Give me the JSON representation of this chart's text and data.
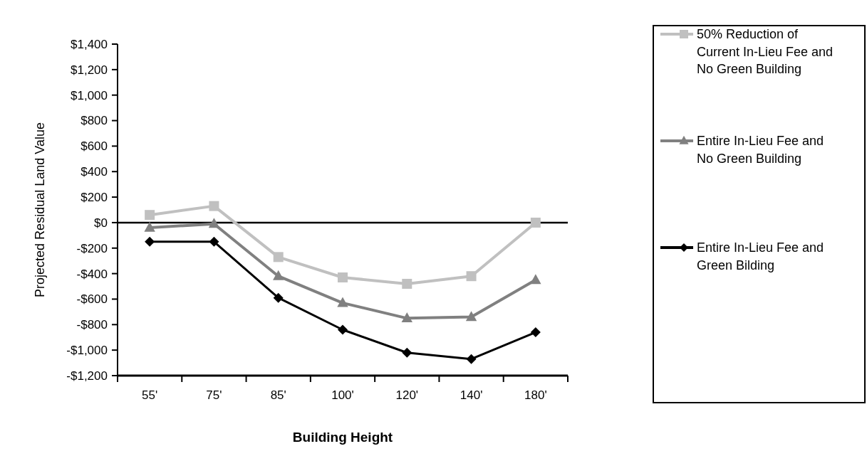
{
  "chart_data": {
    "type": "line",
    "xlabel": "Building Height",
    "ylabel": "Projected Residual Land Value",
    "categories": [
      "55'",
      "75'",
      "85'",
      "100'",
      "120'",
      "140'",
      "180'"
    ],
    "series": [
      {
        "name": "50% Reduction of Current In-Lieu Fee and No Green Building",
        "color": "#c0c0c0",
        "marker": "square",
        "values": [
          60,
          130,
          -270,
          -430,
          -480,
          -420,
          0
        ]
      },
      {
        "name": "Entire In-Lieu Fee and No Green Building",
        "color": "#808080",
        "marker": "triangle",
        "values": [
          -40,
          -10,
          -420,
          -630,
          -750,
          -740,
          -450
        ]
      },
      {
        "name": "Entire In-Lieu Fee and Green Bilding",
        "color": "#000000",
        "marker": "diamond",
        "values": [
          -150,
          -150,
          -590,
          -840,
          -1020,
          -1070,
          -860
        ]
      }
    ],
    "ylim": [
      -1200,
      1400
    ],
    "yticks": [
      {
        "value": -1200,
        "label": "-$1,200"
      },
      {
        "value": -1000,
        "label": "-$1,000"
      },
      {
        "value": -800,
        "label": "-$800"
      },
      {
        "value": -600,
        "label": "-$600"
      },
      {
        "value": -400,
        "label": "-$400"
      },
      {
        "value": -200,
        "label": "-$200"
      },
      {
        "value": 0,
        "label": "$0"
      },
      {
        "value": 200,
        "label": "$200"
      },
      {
        "value": 400,
        "label": "$400"
      },
      {
        "value": 600,
        "label": "$600"
      },
      {
        "value": 800,
        "label": "$800"
      },
      {
        "value": 1000,
        "label": "$1,000"
      },
      {
        "value": 1200,
        "label": "$1,200"
      },
      {
        "value": 1400,
        "label": "$1,400"
      }
    ],
    "ref_lines": [
      {
        "axis": "y",
        "value": 0,
        "color": "#000000"
      }
    ],
    "grid": false,
    "legend": "right",
    "line_style": "solid"
  }
}
